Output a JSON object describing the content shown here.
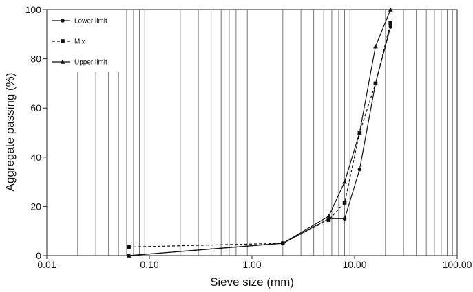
{
  "chart_data": {
    "type": "line",
    "title": "",
    "xlabel": "Sieve size (mm)",
    "ylabel": "Aggregate passing (%)",
    "xscale": "log",
    "xlim": [
      0.01,
      100
    ],
    "ylim": [
      0,
      100
    ],
    "grid": "vertical-log",
    "legend": "top-left",
    "x_ticks": [
      {
        "value": 0.01,
        "label": "0.01"
      },
      {
        "value": 0.1,
        "label": "0.10"
      },
      {
        "value": 1,
        "label": "1.00"
      },
      {
        "value": 10,
        "label": "10.00"
      },
      {
        "value": 100,
        "label": "100.00"
      }
    ],
    "y_ticks": [
      {
        "value": 0,
        "label": "0"
      },
      {
        "value": 20,
        "label": "20"
      },
      {
        "value": 40,
        "label": "40"
      },
      {
        "value": 60,
        "label": "60"
      },
      {
        "value": 80,
        "label": "80"
      },
      {
        "value": 100,
        "label": "100"
      }
    ],
    "series": [
      {
        "name": "Lower limit",
        "marker": "circle",
        "dash": "solid",
        "x": [
          0.063,
          2,
          5.6,
          8,
          11.2,
          16,
          22.4
        ],
        "y": [
          0,
          5,
          15,
          15,
          35,
          70,
          93
        ]
      },
      {
        "name": "Mix",
        "marker": "square",
        "dash": "dashed",
        "x": [
          0.063,
          2,
          5.6,
          8,
          11.2,
          16,
          22.4
        ],
        "y": [
          3.5,
          5,
          14.5,
          21.5,
          50,
          70,
          94.5
        ]
      },
      {
        "name": "Upper limit",
        "marker": "triangle",
        "dash": "solid",
        "x": [
          0.063,
          2,
          5.6,
          8,
          11.2,
          16,
          22.4
        ],
        "y": [
          0,
          5,
          16,
          30,
          50,
          85,
          100
        ]
      }
    ]
  }
}
